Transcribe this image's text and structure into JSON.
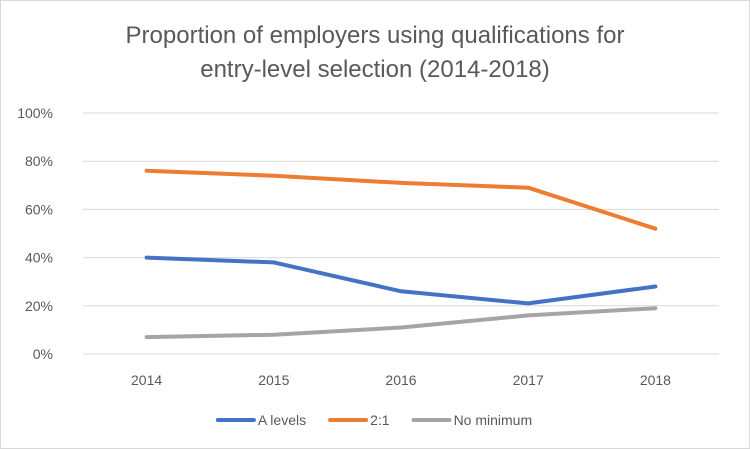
{
  "chart_data": {
    "type": "line",
    "title_lines": [
      "Proportion of employers using qualifications for",
      "entry-level selection (2014-2018)"
    ],
    "categories": [
      "2014",
      "2015",
      "2016",
      "2017",
      "2018"
    ],
    "y_ticks": [
      "0%",
      "20%",
      "40%",
      "60%",
      "80%",
      "100%"
    ],
    "ylim": [
      0,
      100
    ],
    "grid": true,
    "legend_position": "bottom",
    "series": [
      {
        "name": "A levels",
        "color": "#4472c4",
        "values": [
          40,
          38,
          26,
          21,
          28
        ]
      },
      {
        "name": "2:1",
        "color": "#ed7d31",
        "values": [
          76,
          74,
          71,
          69,
          52
        ]
      },
      {
        "name": "No minimum",
        "color": "#a5a5a5",
        "values": [
          7,
          8,
          11,
          16,
          19
        ]
      }
    ]
  }
}
